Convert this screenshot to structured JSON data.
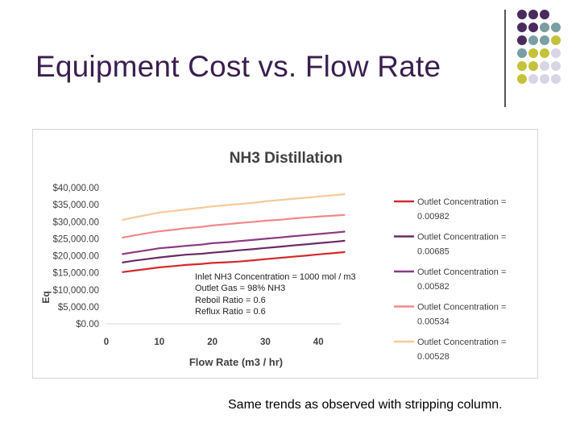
{
  "slide": {
    "title": "Equipment Cost vs. Flow Rate",
    "footnote": "Same trends as observed with stripping column."
  },
  "decoration": {
    "colors": {
      "purple": "#4b2a5e",
      "teal": "#7b9ea3",
      "olive": "#c4c23a",
      "lavender": "#d8d6e4"
    }
  },
  "chart_data": {
    "type": "line",
    "title": "NH3 Distillation",
    "xlabel": "Flow Rate (m3 / hr)",
    "ylabel": "Eq",
    "xlim": [
      0,
      50
    ],
    "ylim": [
      0,
      40000
    ],
    "x_ticks": [
      "0",
      "10",
      "20",
      "30",
      "40"
    ],
    "y_ticks": [
      "$0.00",
      "$5,000.00",
      "$10,000.00",
      "$15,000.00",
      "$20,000.00",
      "$25,000.00",
      "$30,000.00",
      "$35,000.00",
      "$40,000.00"
    ],
    "grid": false,
    "legend_position": "right",
    "annotation": [
      "Inlet NH3 Concentration = 1000 mol / m3",
      "Outlet Gas = 98% NH3",
      "Reboil Ratio = 0.6",
      "Reflux Ratio = 0.6"
    ],
    "x": [
      3,
      5,
      8,
      10,
      13,
      15,
      18,
      20,
      23,
      25,
      28,
      30,
      33,
      35,
      38,
      40,
      43,
      45
    ],
    "series": [
      {
        "name": "Outlet Concentration = 0.00982",
        "color": "#d42a2a",
        "values": [
          15200,
          15600,
          16200,
          16600,
          17000,
          17300,
          17600,
          17900,
          18100,
          18300,
          18700,
          19000,
          19400,
          19700,
          20100,
          20400,
          20800,
          21100
        ]
      },
      {
        "name": "Outlet Concentration = 0.00685",
        "color": "#6b2a66",
        "values": [
          18000,
          18500,
          19100,
          19500,
          20000,
          20300,
          20600,
          20900,
          21300,
          21600,
          22000,
          22300,
          22700,
          23000,
          23400,
          23700,
          24100,
          24400
        ]
      },
      {
        "name": "Outlet Concentration = 0.00582",
        "color": "#8a3a82",
        "values": [
          20500,
          21000,
          21700,
          22200,
          22600,
          22900,
          23300,
          23700,
          24000,
          24300,
          24700,
          25000,
          25400,
          25700,
          26100,
          26400,
          26800,
          27100
        ]
      },
      {
        "name": "Outlet Concentration = 0.00534",
        "color": "#f0898a",
        "values": [
          25300,
          25900,
          26700,
          27200,
          27700,
          28100,
          28500,
          28900,
          29300,
          29600,
          30000,
          30300,
          30600,
          30900,
          31300,
          31500,
          31800,
          32000
        ]
      },
      {
        "name": "Outlet Concentration = 0.00528",
        "color": "#f5c99a",
        "values": [
          30500,
          31200,
          32100,
          32700,
          33200,
          33600,
          34100,
          34500,
          34900,
          35200,
          35600,
          36000,
          36400,
          36700,
          37100,
          37400,
          37800,
          38100
        ]
      }
    ]
  }
}
